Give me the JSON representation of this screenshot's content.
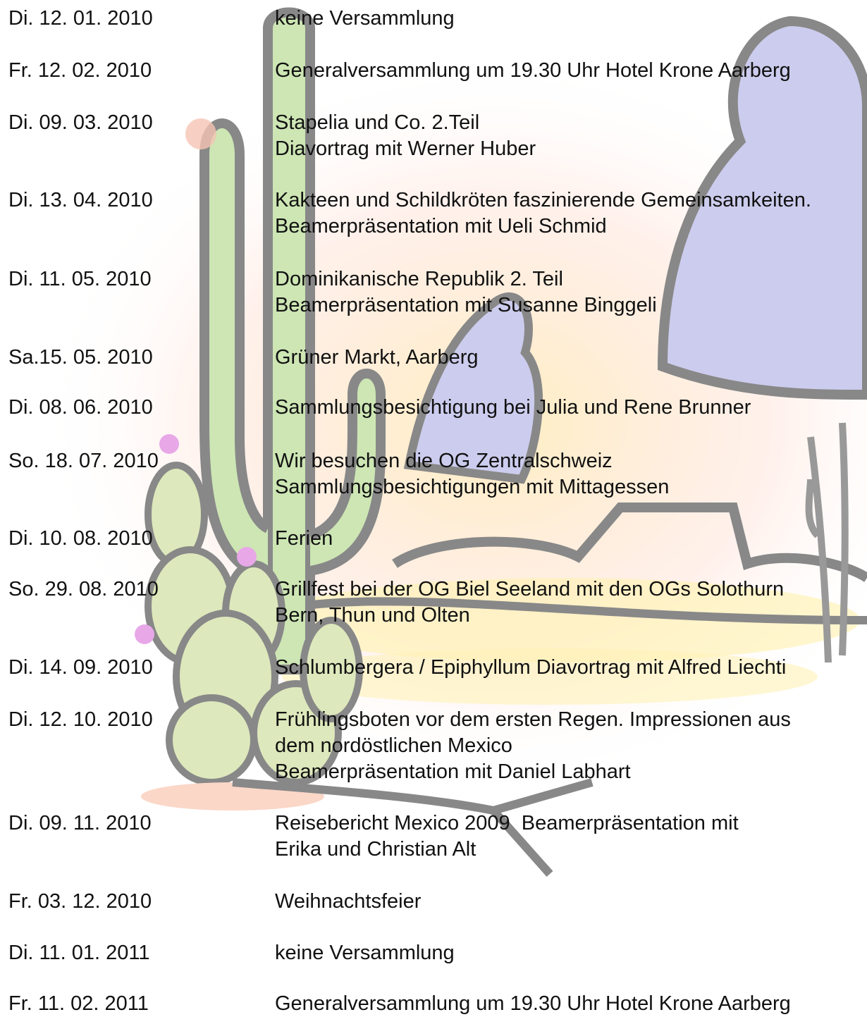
{
  "entries": [
    {
      "date": "Di. 12. 01. 2010",
      "lines": [
        "keine Versammlung"
      ]
    },
    {
      "date": "Fr. 12. 02. 2010",
      "lines": [
        "Generalversammlung um 19.30 Uhr Hotel Krone Aarberg"
      ]
    },
    {
      "date": "Di. 09. 03. 2010",
      "lines": [
        "Stapelia und Co. 2.Teil",
        "Diavortrag mit Werner Huber"
      ]
    },
    {
      "date": "Di. 13. 04. 2010",
      "lines": [
        "Kakteen und Schildkröten faszinierende Gemeinsamkeiten.",
        "Beamerpräsentation mit Ueli Schmid"
      ]
    },
    {
      "date": "Di. 11. 05. 2010",
      "lines": [
        "Dominikanische Republik 2. Teil",
        "Beamerpräsentation mit Susanne Binggeli"
      ]
    },
    {
      "date": "Sa.15. 05. 2010",
      "lines": [
        "Grüner Markt, Aarberg"
      ]
    },
    {
      "date": "Di. 08. 06. 2010",
      "lines": [
        "Sammlungsbesichtigung bei Julia und Rene Brunner"
      ]
    },
    {
      "date": "So. 18. 07. 2010",
      "lines": [
        "Wir besuchen die OG Zentralschweiz",
        "Sammlungsbesichtigungen mit Mittagessen"
      ]
    },
    {
      "date": "Di. 10. 08. 2010",
      "lines": [
        "Ferien"
      ]
    },
    {
      "date": "So. 29. 08. 2010",
      "lines": [
        "Grillfest bei der OG Biel Seeland mit den OGs Solothurn",
        "Bern, Thun und Olten"
      ]
    },
    {
      "date": "Di. 14. 09. 2010",
      "lines": [
        "Schlumbergera / Epiphyllum Diavortrag mit Alfred Liechti"
      ]
    },
    {
      "date": "Di. 12. 10. 2010",
      "lines": [
        "Frühlingsboten vor dem ersten Regen. Impressionen aus",
        "dem nordöstlichen Mexico",
        "Beamerpräsentation mit Daniel Labhart"
      ]
    },
    {
      "date": "Di. 09. 11. 2010",
      "lines": [
        "Reisebericht Mexico 2009  Beamerpräsentation mit",
        "Erika und Christian Alt"
      ]
    },
    {
      "date": "Fr. 03. 12. 2010",
      "lines": [
        "Weihnachtsfeier"
      ]
    },
    {
      "date": "Di. 11. 01. 2011",
      "lines": [
        "keine Versammlung"
      ]
    },
    {
      "date": "Fr. 11. 02. 2011",
      "lines": [
        "Generalversammlung um 19.30 Uhr Hotel Krone Aarberg"
      ]
    }
  ]
}
